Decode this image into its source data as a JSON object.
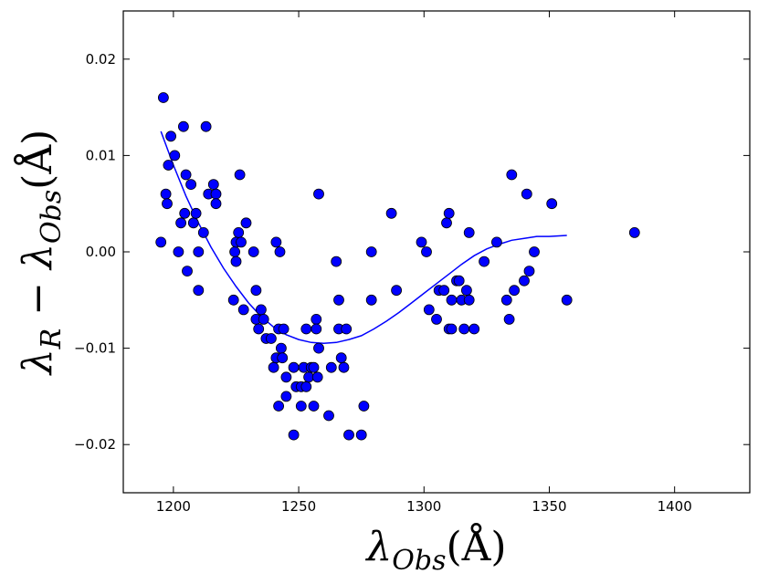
{
  "chart_data": {
    "type": "scatter",
    "title": "",
    "xlabel": "λ_Obs(Å)",
    "ylabel": "λ_R − λ_Obs(Å)",
    "xlabel_parts": {
      "symbol": "λ",
      "sub": "Obs",
      "unit": "(Å)"
    },
    "ylabel_parts": {
      "sym1": "λ",
      "sub1": "R",
      "minus": " − ",
      "sym2": "λ",
      "sub2": "Obs",
      "unit": "(Å)"
    },
    "xlim": [
      1180,
      1430
    ],
    "ylim": [
      -0.025,
      0.025
    ],
    "xticks": [
      1200,
      1250,
      1300,
      1350,
      1400
    ],
    "yticks": [
      -0.02,
      -0.01,
      0.0,
      0.01,
      0.02
    ],
    "xtick_labels": [
      "1200",
      "1250",
      "1300",
      "1350",
      "1400"
    ],
    "ytick_labels": [
      "−0.02",
      "−0.01",
      "0.00",
      "0.01",
      "0.02"
    ],
    "grid": false,
    "legend": "none",
    "marker_color": "#0000ff",
    "line_color": "#0000ff",
    "points": [
      [
        1195,
        0.001
      ],
      [
        1196,
        0.016
      ],
      [
        1197,
        0.006
      ],
      [
        1197.5,
        0.005
      ],
      [
        1198,
        0.009
      ],
      [
        1199,
        0.012
      ],
      [
        1200.5,
        0.01
      ],
      [
        1202,
        0.0
      ],
      [
        1203,
        0.003
      ],
      [
        1204,
        0.013
      ],
      [
        1204.5,
        0.004
      ],
      [
        1205,
        0.008
      ],
      [
        1205.5,
        -0.002
      ],
      [
        1207,
        0.007
      ],
      [
        1208,
        0.003
      ],
      [
        1209,
        0.004
      ],
      [
        1210,
        -0.004
      ],
      [
        1210,
        0.0
      ],
      [
        1212,
        0.002
      ],
      [
        1213,
        0.013
      ],
      [
        1214,
        0.006
      ],
      [
        1216,
        0.007
      ],
      [
        1217,
        0.006
      ],
      [
        1217,
        0.005
      ],
      [
        1224,
        -0.005
      ],
      [
        1224.5,
        0.0
      ],
      [
        1225,
        0.001
      ],
      [
        1225,
        -0.001
      ],
      [
        1226,
        0.002
      ],
      [
        1226.5,
        0.008
      ],
      [
        1227,
        0.001
      ],
      [
        1228,
        -0.006
      ],
      [
        1229,
        0.003
      ],
      [
        1232,
        0.0
      ],
      [
        1233,
        -0.004
      ],
      [
        1233,
        -0.007
      ],
      [
        1234,
        -0.008
      ],
      [
        1235,
        -0.006
      ],
      [
        1236,
        -0.007
      ],
      [
        1237,
        -0.009
      ],
      [
        1239,
        -0.009
      ],
      [
        1240,
        -0.012
      ],
      [
        1241,
        0.001
      ],
      [
        1241,
        -0.011
      ],
      [
        1242,
        -0.008
      ],
      [
        1242,
        -0.016
      ],
      [
        1242.5,
        0.0
      ],
      [
        1243,
        -0.01
      ],
      [
        1243.5,
        -0.011
      ],
      [
        1244,
        -0.008
      ],
      [
        1245,
        -0.013
      ],
      [
        1245,
        -0.015
      ],
      [
        1248,
        -0.019
      ],
      [
        1248,
        -0.012
      ],
      [
        1249,
        -0.014
      ],
      [
        1251,
        -0.014
      ],
      [
        1251,
        -0.016
      ],
      [
        1252,
        -0.012
      ],
      [
        1253,
        -0.014
      ],
      [
        1253,
        -0.008
      ],
      [
        1254,
        -0.013
      ],
      [
        1255,
        -0.012
      ],
      [
        1256,
        -0.016
      ],
      [
        1256,
        -0.012
      ],
      [
        1257,
        -0.007
      ],
      [
        1257,
        -0.008
      ],
      [
        1257.5,
        -0.013
      ],
      [
        1258,
        -0.01
      ],
      [
        1258,
        0.006
      ],
      [
        1262,
        -0.017
      ],
      [
        1263,
        -0.012
      ],
      [
        1265,
        -0.001
      ],
      [
        1266,
        -0.008
      ],
      [
        1266,
        -0.005
      ],
      [
        1267,
        -0.011
      ],
      [
        1268,
        -0.012
      ],
      [
        1269,
        -0.008
      ],
      [
        1270,
        -0.019
      ],
      [
        1275,
        -0.019
      ],
      [
        1276,
        -0.016
      ],
      [
        1279,
        0.0
      ],
      [
        1279,
        -0.005
      ],
      [
        1287,
        0.004
      ],
      [
        1289,
        -0.004
      ],
      [
        1299,
        0.001
      ],
      [
        1301,
        0.0
      ],
      [
        1302,
        -0.006
      ],
      [
        1305,
        -0.007
      ],
      [
        1306,
        -0.004
      ],
      [
        1308,
        -0.004
      ],
      [
        1309,
        0.003
      ],
      [
        1310,
        0.004
      ],
      [
        1310,
        -0.008
      ],
      [
        1311,
        -0.005
      ],
      [
        1311,
        -0.008
      ],
      [
        1313,
        -0.003
      ],
      [
        1314,
        -0.003
      ],
      [
        1315,
        -0.005
      ],
      [
        1316,
        -0.008
      ],
      [
        1317,
        -0.004
      ],
      [
        1318,
        0.002
      ],
      [
        1318,
        -0.005
      ],
      [
        1320,
        -0.008
      ],
      [
        1324,
        -0.001
      ],
      [
        1329,
        0.001
      ],
      [
        1333,
        -0.005
      ],
      [
        1334,
        -0.007
      ],
      [
        1335,
        0.008
      ],
      [
        1336,
        -0.004
      ],
      [
        1340,
        -0.003
      ],
      [
        1341,
        0.006
      ],
      [
        1342,
        -0.002
      ],
      [
        1344,
        0.0
      ],
      [
        1351,
        0.005
      ],
      [
        1357,
        -0.005
      ],
      [
        1384,
        0.002
      ]
    ],
    "fit_line": [
      [
        1195,
        0.0125
      ],
      [
        1200,
        0.009
      ],
      [
        1205,
        0.0058
      ],
      [
        1210,
        0.003
      ],
      [
        1215,
        0.0005
      ],
      [
        1220,
        -0.0017
      ],
      [
        1225,
        -0.0036
      ],
      [
        1230,
        -0.0053
      ],
      [
        1235,
        -0.0067
      ],
      [
        1240,
        -0.0078
      ],
      [
        1245,
        -0.0086
      ],
      [
        1250,
        -0.0091
      ],
      [
        1255,
        -0.0094
      ],
      [
        1260,
        -0.0095
      ],
      [
        1265,
        -0.0094
      ],
      [
        1270,
        -0.0091
      ],
      [
        1275,
        -0.0087
      ],
      [
        1280,
        -0.008
      ],
      [
        1285,
        -0.0072
      ],
      [
        1290,
        -0.0063
      ],
      [
        1295,
        -0.0053
      ],
      [
        1300,
        -0.0043
      ],
      [
        1305,
        -0.0033
      ],
      [
        1310,
        -0.0023
      ],
      [
        1315,
        -0.0013
      ],
      [
        1320,
        -0.0004
      ],
      [
        1325,
        0.0003
      ],
      [
        1330,
        0.0008
      ],
      [
        1335,
        0.0012
      ],
      [
        1340,
        0.0014
      ],
      [
        1345,
        0.0016
      ],
      [
        1350,
        0.0016
      ],
      [
        1357,
        0.0017
      ]
    ]
  }
}
